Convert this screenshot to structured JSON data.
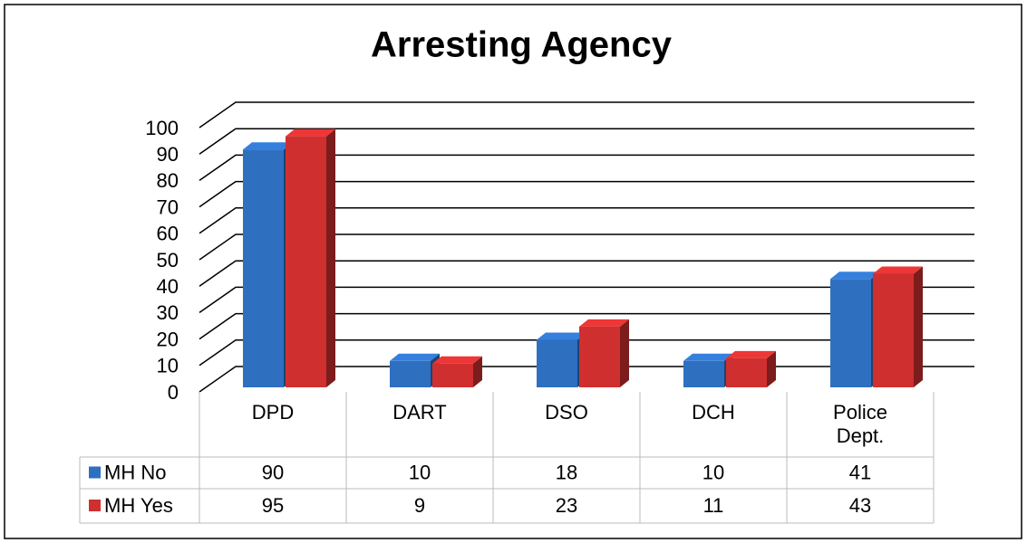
{
  "chart_data": {
    "type": "bar3d",
    "title": "Arresting Agency",
    "categories": [
      "DPD",
      "DART",
      "DSO",
      "DCH",
      "Police Dept."
    ],
    "series": [
      {
        "name": "MH No",
        "color": "#2e6fc0",
        "values": [
          90,
          10,
          18,
          10,
          41
        ]
      },
      {
        "name": "MH Yes",
        "color": "#cf2f2f",
        "values": [
          95,
          9,
          23,
          11,
          43
        ]
      }
    ],
    "ylim": [
      0,
      100
    ],
    "yticks": [
      0,
      10,
      20,
      30,
      40,
      50,
      60,
      70,
      80,
      90,
      100
    ],
    "grid": true,
    "data_table": true
  }
}
